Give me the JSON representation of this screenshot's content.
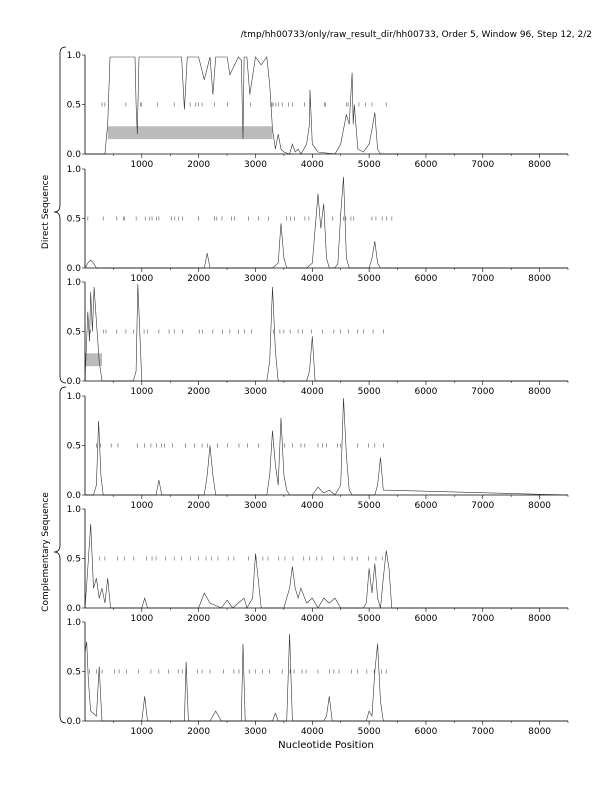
{
  "page_title": "/tmp/hh00733/only/raw_result_dir/hh00733, Order 5, Window 96, Step 12, 2/2",
  "x_axis_label": "Nucleotide Position",
  "group_labels": [
    "Direct Sequence",
    "Complementary Sequence"
  ],
  "chart_data": {
    "type": "line",
    "xlim": [
      0,
      8500
    ],
    "ylim": [
      0,
      1
    ],
    "x_ticks": [
      1000,
      2000,
      3000,
      4000,
      5000,
      6000,
      7000,
      8000
    ],
    "y_ticks": [
      "0.0",
      "0.5",
      "1.0"
    ],
    "grid": false,
    "stop_marks_level": 0.5,
    "stop_marks_extent": [
      0,
      5400
    ],
    "panels": [
      {
        "group": "Direct Sequence",
        "frame": 1,
        "series": [
          {
            "x": [
              0,
              350,
              400,
              440,
              500,
              700,
              880,
              900,
              920,
              950,
              1100,
              1300,
              1500,
              1700,
              1750,
              1800,
              1850,
              2000,
              2100,
              2200,
              2250,
              2300,
              2400,
              2500,
              2550,
              2700,
              2750,
              2780,
              2800,
              2850,
              2900,
              3000,
              3100,
              3200,
              3250,
              3300,
              3350,
              3400,
              3450,
              3500,
              3600,
              3650,
              3700,
              3750,
              3800,
              3900,
              3950,
              3960,
              4000,
              4100,
              4400,
              4500,
              4600,
              4650,
              4700,
              4720,
              4740,
              4800,
              4900,
              5000,
              5050,
              5100,
              5150,
              5200,
              5500,
              8500
            ],
            "y": [
              0.0,
              0.0,
              0.3,
              0.98,
              0.98,
              0.98,
              0.98,
              0.5,
              0.2,
              0.98,
              0.98,
              0.98,
              0.98,
              0.98,
              0.45,
              0.98,
              0.98,
              0.98,
              0.75,
              0.98,
              0.6,
              0.98,
              0.98,
              0.98,
              0.8,
              0.98,
              0.95,
              0.15,
              0.98,
              0.98,
              0.6,
              0.98,
              0.9,
              0.98,
              0.7,
              0.25,
              0.05,
              0.2,
              0.05,
              0.02,
              0.0,
              0.1,
              0.02,
              0.05,
              0.0,
              0.1,
              0.3,
              0.65,
              0.1,
              0.02,
              0.0,
              0.1,
              0.4,
              0.3,
              0.82,
              0.3,
              0.5,
              0.05,
              0.02,
              0.1,
              0.25,
              0.42,
              0.05,
              0.0,
              0.0,
              0.0
            ]
          }
        ],
        "stop_marks": [
          300,
          350,
          720,
          980,
          1000,
          1280,
          1570,
          1850,
          1950,
          2000,
          2060,
          2280,
          2510,
          2910,
          3270,
          3290,
          3310,
          3360,
          3410,
          3470,
          3580,
          3650,
          3860,
          3970,
          4210,
          4230,
          4600,
          4630,
          4820,
          4940,
          5050,
          5300
        ],
        "highlight": [
          400,
          3300
        ]
      },
      {
        "group": "Direct Sequence",
        "frame": 2,
        "series": [
          {
            "x": [
              0,
              50,
              100,
              150,
              200,
              1000,
              2100,
              2150,
              2200,
              3300,
              3400,
              3450,
              3500,
              3550,
              3900,
              4000,
              4100,
              4150,
              4200,
              4250,
              4300,
              4400,
              4450,
              4500,
              4550,
              4600,
              4650,
              4700,
              5000,
              5050,
              5100,
              5150,
              5200,
              8500
            ],
            "y": [
              0.0,
              0.05,
              0.08,
              0.05,
              0.0,
              0.0,
              0.0,
              0.15,
              0.0,
              0.0,
              0.05,
              0.45,
              0.1,
              0.0,
              0.0,
              0.05,
              0.75,
              0.4,
              0.65,
              0.1,
              0.0,
              0.0,
              0.05,
              0.55,
              0.92,
              0.1,
              0.0,
              0.0,
              0.0,
              0.1,
              0.27,
              0.05,
              0.0,
              0.0
            ]
          }
        ],
        "stop_marks": [
          50,
          320,
          560,
          680,
          700,
          900,
          1060,
          1140,
          1180,
          1260,
          1300,
          1520,
          1580,
          1650,
          1720,
          2000,
          2280,
          2320,
          2410,
          2580,
          2630,
          2880,
          3050,
          3230,
          3550,
          3620,
          3690,
          3870,
          3940,
          4360,
          4550,
          4590,
          4680,
          4730,
          5050,
          5120,
          5230,
          5310,
          5400
        ]
      },
      {
        "group": "Direct Sequence",
        "frame": 3,
        "series": [
          {
            "x": [
              0,
              50,
              80,
              100,
              130,
              160,
              200,
              250,
              300,
              850,
              900,
              930,
              1000,
              3200,
              3250,
              3300,
              3350,
              3400,
              3900,
              3950,
              4000,
              4050,
              8500
            ],
            "y": [
              0.0,
              0.7,
              0.4,
              0.9,
              0.5,
              0.95,
              0.6,
              0.2,
              0.0,
              0.0,
              0.1,
              0.98,
              0.0,
              0.0,
              0.2,
              0.95,
              0.3,
              0.0,
              0.0,
              0.1,
              0.45,
              0.0,
              0.0
            ]
          }
        ],
        "stop_marks": [
          100,
          330,
          370,
          560,
          720,
          850,
          1040,
          1100,
          1300,
          1480,
          1570,
          1720,
          2010,
          2070,
          2250,
          2420,
          2550,
          2700,
          2810,
          2930,
          3320,
          3430,
          3500,
          3610,
          3750,
          3830,
          3990,
          4180,
          4380,
          4500,
          4640,
          4800,
          4900,
          5070,
          5250
        ],
        "highlight": [
          0,
          300
        ]
      },
      {
        "group": "Complementary Sequence",
        "frame": 1,
        "series": [
          {
            "x": [
              0,
              150,
              200,
              240,
              280,
              320,
              1250,
              1300,
              1350,
              2100,
              2150,
              2200,
              2250,
              2300,
              3200,
              3250,
              3300,
              3350,
              3400,
              3450,
              3500,
              3550,
              3600,
              4000,
              4100,
              4200,
              4300,
              4400,
              4500,
              4550,
              4600,
              4650,
              4700,
              5100,
              5150,
              5200,
              5250,
              8500
            ],
            "y": [
              0.0,
              0.0,
              0.1,
              0.75,
              0.2,
              0.0,
              0.0,
              0.15,
              0.0,
              0.0,
              0.2,
              0.5,
              0.2,
              0.0,
              0.0,
              0.2,
              0.65,
              0.3,
              0.1,
              0.78,
              0.2,
              0.05,
              0.0,
              0.0,
              0.08,
              0.02,
              0.05,
              0.0,
              0.1,
              0.98,
              0.4,
              0.05,
              0.0,
              0.0,
              0.1,
              0.38,
              0.05,
              0.0
            ]
          }
        ],
        "stop_marks": [
          200,
          270,
          460,
          580,
          920,
          1050,
          1160,
          1260,
          1350,
          1400,
          1540,
          1770,
          1930,
          2060,
          2160,
          2330,
          2510,
          2710,
          2860,
          3050,
          3320,
          3510,
          3650,
          3800,
          3870,
          4100,
          4180,
          4250,
          4440,
          4500,
          4800,
          4990,
          5100,
          5250
        ]
      },
      {
        "group": "Complementary Sequence",
        "frame": 2,
        "series": [
          {
            "x": [
              0,
              50,
              100,
              150,
              200,
              250,
              300,
              350,
              400,
              450,
              1000,
              1050,
              1100,
              2000,
              2100,
              2200,
              2400,
              2500,
              2600,
              2700,
              2800,
              2850,
              2950,
              3000,
              3100,
              3500,
              3550,
              3600,
              3650,
              3700,
              3750,
              3800,
              3900,
              4000,
              4100,
              4200,
              4300,
              4400,
              4500,
              4900,
              4950,
              5000,
              5050,
              5100,
              5150,
              5200,
              5250,
              5300,
              5350,
              5400,
              8500
            ],
            "y": [
              0.0,
              0.4,
              0.85,
              0.2,
              0.3,
              0.1,
              0.2,
              0.05,
              0.3,
              0.0,
              0.0,
              0.1,
              0.0,
              0.0,
              0.15,
              0.05,
              0.0,
              0.08,
              0.0,
              0.05,
              0.1,
              0.0,
              0.1,
              0.55,
              0.0,
              0.0,
              0.1,
              0.2,
              0.42,
              0.2,
              0.1,
              0.2,
              0.05,
              0.1,
              0.0,
              0.1,
              0.05,
              0.1,
              0.0,
              0.0,
              0.05,
              0.4,
              0.15,
              0.45,
              0.1,
              0.0,
              0.3,
              0.58,
              0.4,
              0.0,
              0.0
            ]
          }
        ],
        "stop_marks": [
          260,
          350,
          570,
          690,
          860,
          1080,
          1180,
          1250,
          1420,
          1570,
          1700,
          1860,
          2000,
          2130,
          2230,
          2340,
          2520,
          2620,
          2880,
          3010,
          3130,
          3220,
          3410,
          3520,
          3660,
          3850,
          3950,
          4080,
          4170,
          4370,
          4560,
          4700,
          4790,
          4990,
          5120,
          5230
        ]
      },
      {
        "group": "Complementary Sequence",
        "frame": 3,
        "series": [
          {
            "x": [
              0,
              30,
              60,
              100,
              200,
              250,
              280,
              300,
              1000,
              1050,
              1100,
              1750,
              1780,
              1820,
              2200,
              2300,
              2400,
              2750,
              2780,
              2820,
              3300,
              3350,
              3400,
              3550,
              3600,
              3650,
              4200,
              4250,
              4300,
              4350,
              4950,
              5000,
              5050,
              5100,
              5150,
              5200,
              5250,
              8500
            ],
            "y": [
              0.7,
              0.8,
              0.4,
              0.1,
              0.05,
              0.55,
              0.2,
              0.0,
              0.0,
              0.25,
              0.0,
              0.0,
              0.6,
              0.0,
              0.0,
              0.1,
              0.0,
              0.0,
              0.78,
              0.0,
              0.0,
              0.08,
              0.0,
              0.0,
              0.88,
              0.0,
              0.0,
              0.05,
              0.25,
              0.0,
              0.0,
              0.1,
              0.05,
              0.5,
              0.78,
              0.2,
              0.0,
              0.0
            ]
          }
        ],
        "stop_marks": [
          80,
          200,
          300,
          520,
          600,
          730,
          940,
          1160,
          1300,
          1470,
          1640,
          1710,
          1780,
          1980,
          2060,
          2200,
          2440,
          2620,
          2710,
          2890,
          3000,
          3120,
          3250,
          3470,
          3610,
          3680,
          3820,
          3890,
          4100,
          4300,
          4380,
          4470,
          4690,
          4800,
          4960,
          5090,
          5220,
          5300
        ]
      }
    ]
  }
}
